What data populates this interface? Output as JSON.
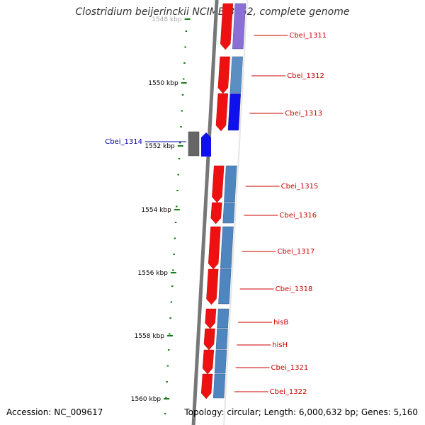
{
  "title": "Clostridium beijerinckii NCIMB 8052, complete genome",
  "footer": {
    "accession": "Accession: NC_009617",
    "summary": "Topology: circular; Length: 6,000,632 bp; Genes: 5,160"
  },
  "ticks": [
    "1548 kbp",
    "1550 kbp",
    "1552 kbp",
    "1554 kbp",
    "1556 kbp",
    "1558 kbp",
    "1560 kbp"
  ],
  "genes": [
    {
      "label": "Cbei_1311",
      "cds_color": "#8b6fd6"
    },
    {
      "label": "Cbei_1312",
      "cds_color": "#5b8fc4"
    },
    {
      "label": "Cbei_1313",
      "cds_color": "#1010ee"
    },
    {
      "label": "Cbei_1314",
      "cds_color": "#1010ee",
      "reverse_strand": true
    },
    {
      "label": "Cbei_1315",
      "cds_color": "#4f86c0"
    },
    {
      "label": "Cbei_1316",
      "cds_color": "#4f86c0"
    },
    {
      "label": "Cbei_1317",
      "cds_color": "#4f86c0"
    },
    {
      "label": "Cbei_1318",
      "cds_color": "#4f86c0"
    },
    {
      "label": "hisB",
      "cds_color": "#4f86c0"
    },
    {
      "label": "hisH",
      "cds_color": "#4f86c0"
    },
    {
      "label": "Cbei_1321",
      "cds_color": "#4f86c0"
    },
    {
      "label": "Cbei_1322",
      "cds_color": "#4f86c0"
    }
  ],
  "colors": {
    "gene_feature": "#ee1111",
    "backbone": "#777777",
    "tick": "#1a7a1a",
    "forward_label": "#cc0000",
    "reverse_label": "#0000aa"
  }
}
